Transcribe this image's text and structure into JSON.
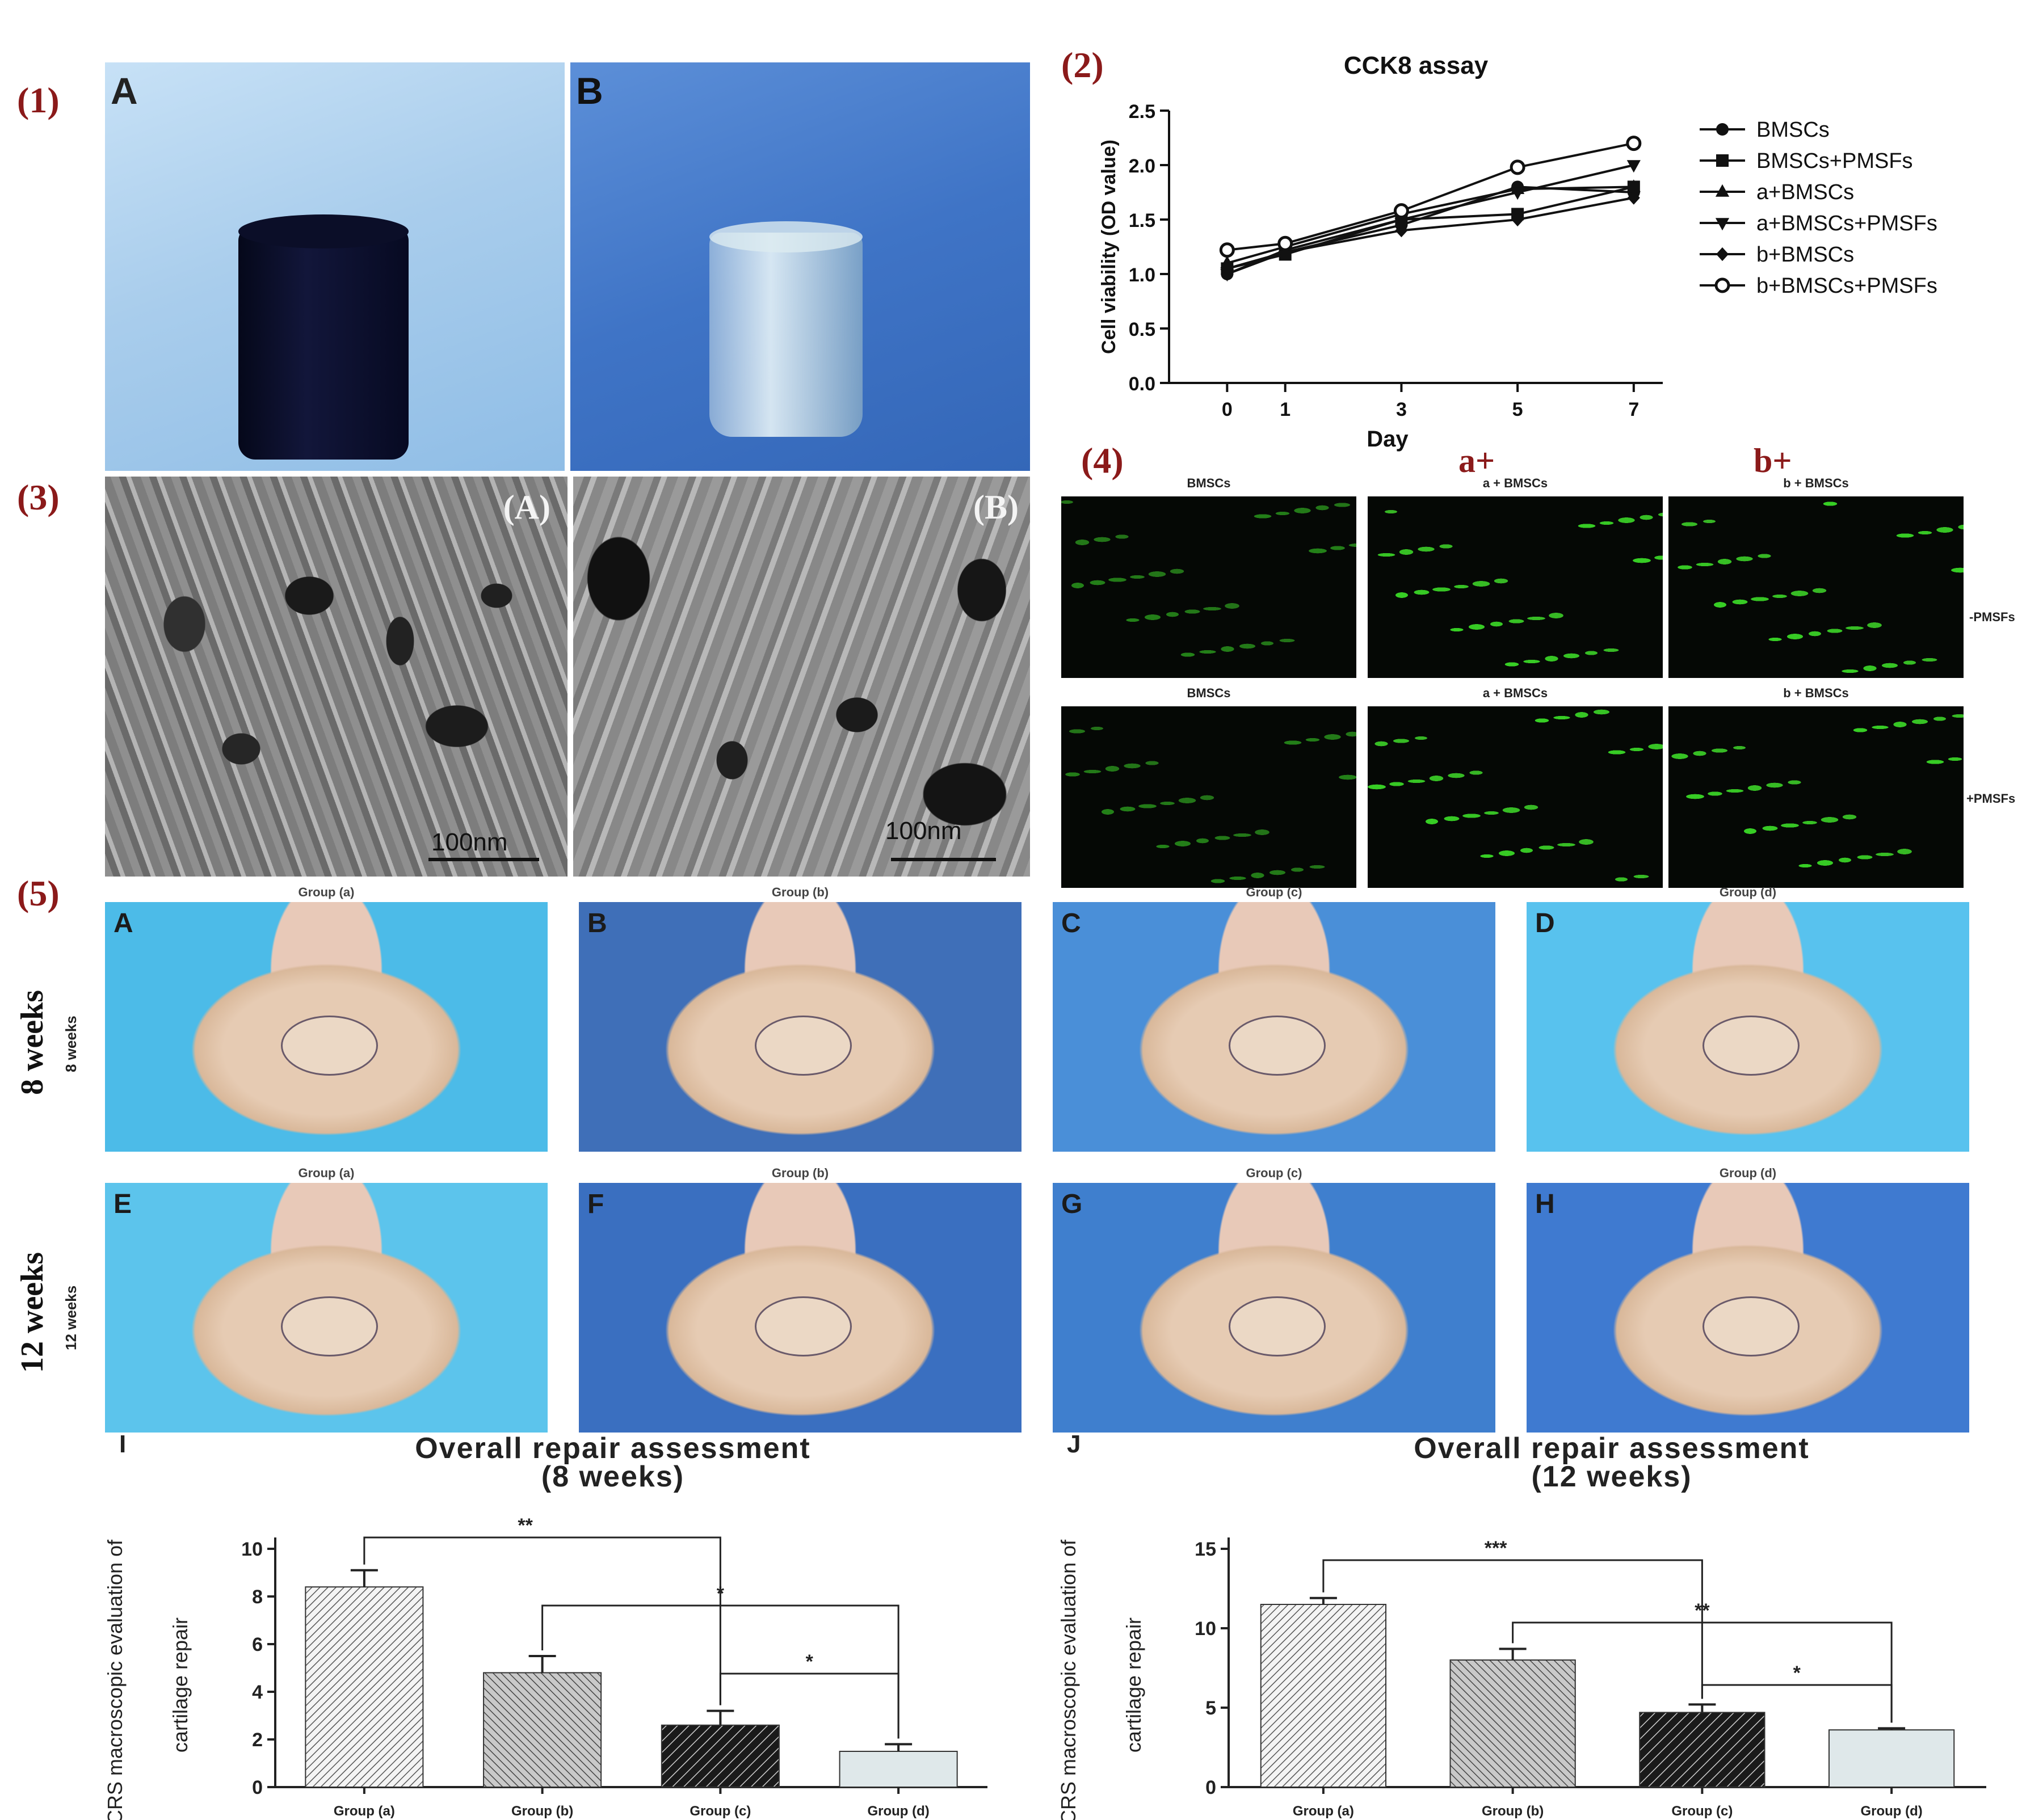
{
  "panel_labels": {
    "p1": "(1)",
    "p2": "(2)",
    "p3": "(3)",
    "p4": "(4)",
    "p5": "(5)"
  },
  "photos1": {
    "a_letter": "A",
    "b_letter": "B"
  },
  "sem": {
    "a_label": "(A)",
    "b_label": "(B)",
    "a_scale": "100nm",
    "b_scale": "100nm"
  },
  "fluor": {
    "annot_a": "a+",
    "annot_b": "b+",
    "top_labels": [
      "BMSCs",
      "a + BMSCs",
      "b + BMSCs"
    ],
    "bottom_labels": [
      "BMSCs",
      "a + BMSCs",
      "b + BMSCs"
    ],
    "side_top": "-PMSFs",
    "side_bottom": "+PMSFs"
  },
  "repair": {
    "week8_big": "8 weeks",
    "week8_small": "8 weeks",
    "week12_big": "12 weeks",
    "week12_small": "12 weeks",
    "row1_groups": [
      "Group (a)",
      "Group (b)",
      "Group (c)",
      "Group (d)"
    ],
    "row2_groups": [
      "Group (a)",
      "Group (b)",
      "Group (c)",
      "Group (d)"
    ],
    "row1_letters": [
      "A",
      "B",
      "C",
      "D"
    ],
    "row2_letters": [
      "E",
      "F",
      "G",
      "H"
    ]
  },
  "chart_data": [
    {
      "type": "line",
      "title": "CCK8 assay",
      "xlabel": "Day",
      "ylabel": "Cell viability (OD value)",
      "x": [
        0,
        1,
        3,
        5,
        7
      ],
      "ylim": [
        0.0,
        2.5
      ],
      "yticks": [
        "0.0",
        "0.5",
        "1.0",
        "1.5",
        "2.0",
        "2.5"
      ],
      "xticks": [
        "0",
        "1",
        "3",
        "5",
        "7"
      ],
      "legend": "right",
      "series": [
        {
          "name": "BMSCs",
          "marker": "circle-filled",
          "values": [
            1.0,
            1.2,
            1.45,
            1.8,
            1.75
          ]
        },
        {
          "name": "BMSCs+PMSFs",
          "marker": "square",
          "values": [
            1.05,
            1.18,
            1.5,
            1.55,
            1.8
          ]
        },
        {
          "name": "a+BMSCs",
          "marker": "triangle-up",
          "values": [
            1.1,
            1.25,
            1.55,
            1.78,
            1.8
          ]
        },
        {
          "name": "a+BMSCs+PMSFs",
          "marker": "triangle-down",
          "values": [
            1.0,
            1.22,
            1.5,
            1.75,
            2.0
          ]
        },
        {
          "name": "b+BMSCs",
          "marker": "diamond",
          "values": [
            1.05,
            1.2,
            1.4,
            1.5,
            1.7
          ]
        },
        {
          "name": "b+BMSCs+PMSFs",
          "marker": "circle-open",
          "values": [
            1.22,
            1.28,
            1.58,
            1.98,
            2.2
          ]
        }
      ]
    },
    {
      "type": "bar",
      "panel_letter": "I",
      "title": "Overall repair assessment",
      "subtitle": "(8 weeks)",
      "ylabel_line1": "ICRS macroscopic evaluation of",
      "ylabel_line2": "cartilage repair",
      "categories": [
        "Group (a)",
        "Group (b)",
        "Group (c)",
        "Group (d)"
      ],
      "values": [
        8.4,
        4.8,
        2.6,
        1.5
      ],
      "errors": [
        0.7,
        0.7,
        0.6,
        0.3
      ],
      "ylim": [
        0,
        10
      ],
      "yticks": [
        "0",
        "2",
        "4",
        "6",
        "8",
        "10"
      ],
      "significance": [
        {
          "from": 0,
          "to": 2,
          "label": "**"
        },
        {
          "from": 1,
          "to": 3,
          "label": "*"
        },
        {
          "from": 2,
          "to": 3,
          "label": "*"
        }
      ]
    },
    {
      "type": "bar",
      "panel_letter": "J",
      "title": "Overall repair assessment",
      "subtitle": "(12 weeks)",
      "ylabel_line1": "ICRS macroscopic evaluation of",
      "ylabel_line2": "cartilage repair",
      "categories": [
        "Group (a)",
        "Group (b)",
        "Group (c)",
        "Group (d)"
      ],
      "values": [
        11.5,
        8.0,
        4.7,
        3.6
      ],
      "errors": [
        0.4,
        0.7,
        0.5,
        0.1
      ],
      "ylim": [
        0,
        15
      ],
      "yticks": [
        "0",
        "5",
        "10",
        "15"
      ],
      "significance": [
        {
          "from": 0,
          "to": 2,
          "label": "***"
        },
        {
          "from": 1,
          "to": 3,
          "label": "**"
        },
        {
          "from": 2,
          "to": 3,
          "label": "*"
        }
      ]
    }
  ]
}
